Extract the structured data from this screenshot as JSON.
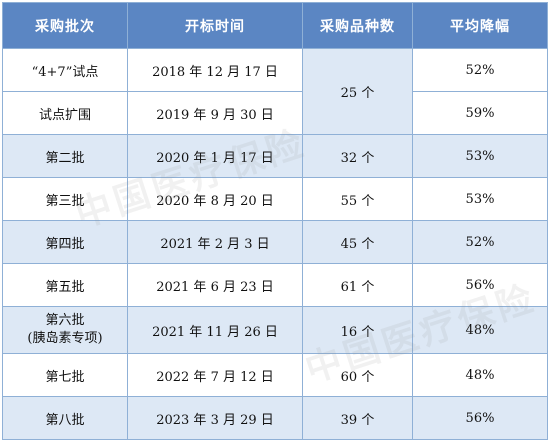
{
  "table": {
    "headers": [
      "采购批次",
      "开标时间",
      "采购品种数",
      "平均降幅"
    ],
    "rows": [
      {
        "batch": "“4+7”试点",
        "date": "2018 年 12 月 17 日",
        "count": "25 个",
        "reduction": "52%"
      },
      {
        "batch": "试点扩围",
        "date": "2019 年 9 月 30 日",
        "reduction": "59%"
      },
      {
        "batch": "第二批",
        "date": "2020 年 1 月 17 日",
        "count": "32 个",
        "reduction": "53%"
      },
      {
        "batch": "第三批",
        "date": "2020 年 8 月 20 日",
        "count": "55 个",
        "reduction": "53%"
      },
      {
        "batch": "第四批",
        "date": "2021 年 2 月 3 日",
        "count": "45 个",
        "reduction": "52%"
      },
      {
        "batch": "第五批",
        "date": "2021 年 6 月 23 日",
        "count": "61 个",
        "reduction": "56%"
      },
      {
        "batch_line1": "第六批",
        "batch_line2": "(胰岛素专项)",
        "date": "2021 年 11 月 26 日",
        "count": "16 个",
        "reduction": "48%"
      },
      {
        "batch": "第七批",
        "date": "2022 年 7 月 12 日",
        "count": "60 个",
        "reduction": "48%"
      },
      {
        "batch": "第八批",
        "date": "2023 年 3 月 29 日",
        "count": "39 个",
        "reduction": "56%"
      }
    ]
  },
  "watermark": {
    "text": "中国医疗保险"
  }
}
